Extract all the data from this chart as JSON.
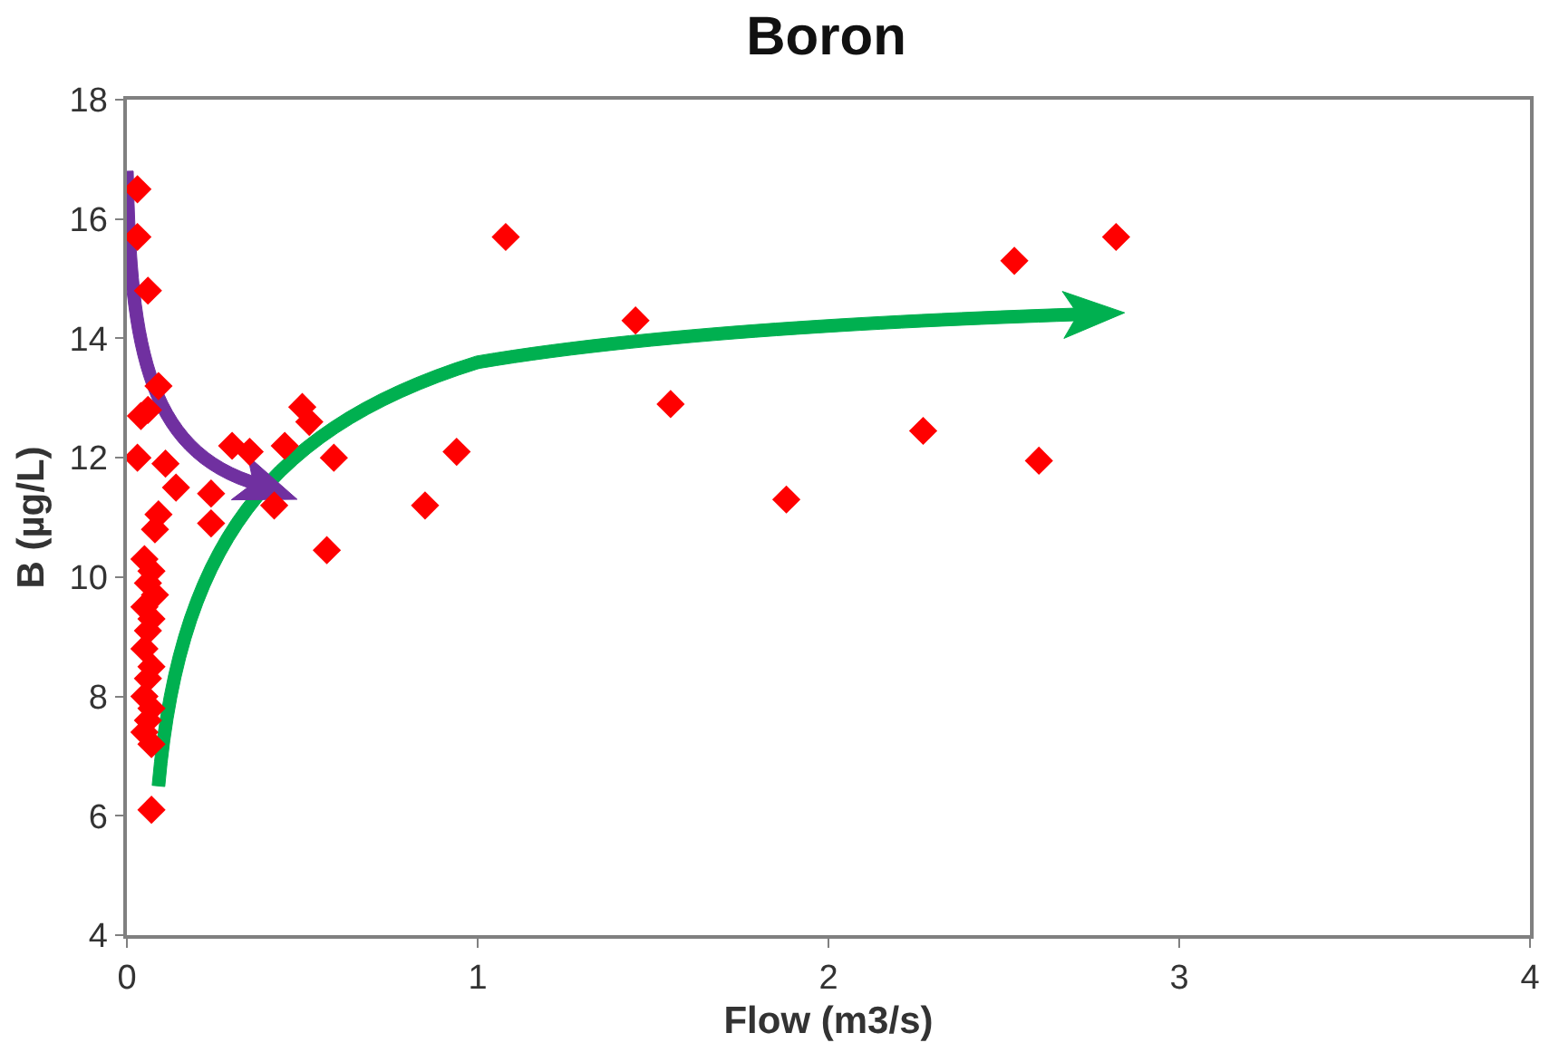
{
  "chart_data": {
    "type": "scatter",
    "title": "Boron",
    "xlabel": "Flow (m3/s)",
    "ylabel": "B (µg/L)",
    "xlim": [
      0,
      4
    ],
    "xticks": [
      0,
      1,
      2,
      3,
      4
    ],
    "ylim": [
      4,
      18
    ],
    "yticks": [
      4,
      6,
      8,
      10,
      12,
      14,
      16,
      18
    ],
    "grid": false,
    "marker": "diamond",
    "series": [
      {
        "color": "#ff0000",
        "x": [
          0.03,
          0.03,
          0.06,
          0.09,
          0.04,
          0.06,
          0.03,
          0.11,
          0.14,
          0.24,
          0.3,
          0.35,
          0.45,
          0.5,
          0.52,
          0.59,
          0.42,
          0.24,
          0.09,
          0.08,
          0.57,
          0.05,
          0.07,
          0.06,
          0.08,
          0.05,
          0.07,
          0.06,
          0.05,
          0.07,
          0.06,
          0.05,
          0.07,
          0.06,
          0.05,
          0.07,
          0.07,
          0.85,
          0.94,
          1.08,
          1.45,
          1.55,
          1.88,
          2.27,
          2.53,
          2.6,
          2.82
        ],
        "values": [
          16.5,
          15.7,
          14.8,
          13.2,
          12.7,
          12.8,
          12.0,
          11.9,
          11.5,
          11.4,
          12.2,
          12.1,
          12.2,
          12.85,
          12.6,
          12.0,
          11.2,
          10.9,
          11.05,
          10.8,
          10.45,
          10.3,
          10.1,
          9.9,
          9.7,
          9.5,
          9.3,
          9.1,
          8.8,
          8.5,
          8.3,
          8.0,
          7.8,
          7.6,
          7.4,
          7.2,
          6.1,
          11.2,
          12.1,
          15.7,
          14.3,
          12.9,
          11.3,
          12.45,
          15.3,
          11.95,
          15.7
        ]
      }
    ]
  }
}
